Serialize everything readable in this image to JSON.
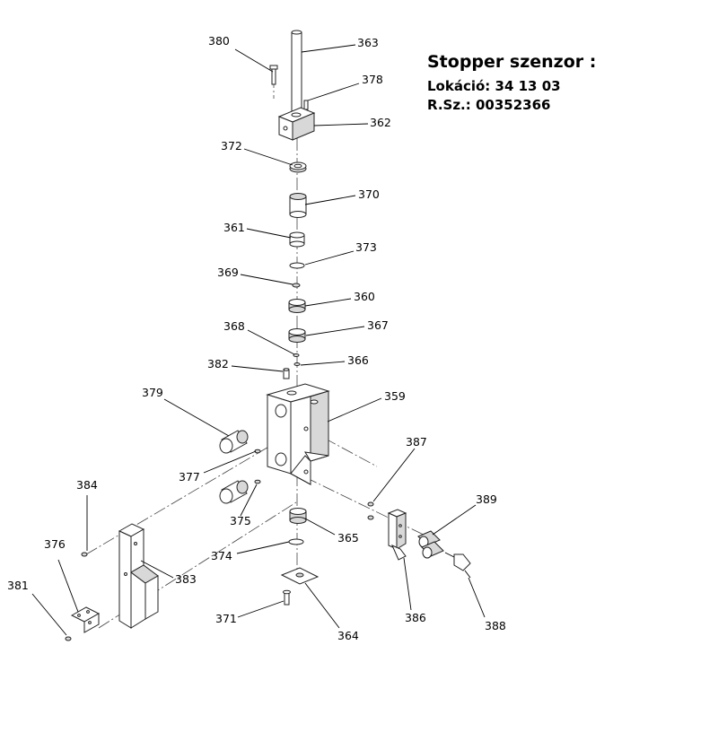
{
  "header": {
    "title": "Stopper szenzor :",
    "location": "Lokáció: 34 13 03",
    "part_number": "R.Sz.: 00352366"
  },
  "callouts": {
    "c380": "380",
    "c363": "363",
    "c378": "378",
    "c362": "362",
    "c372": "372",
    "c370": "370",
    "c361": "361",
    "c373": "373",
    "c369": "369",
    "c360": "360",
    "c368": "368",
    "c367": "367",
    "c382": "382",
    "c366": "366",
    "c379": "379",
    "c359": "359",
    "c387": "387",
    "c377": "377",
    "c384": "384",
    "c389": "389",
    "c376": "376",
    "c375": "375",
    "c365": "365",
    "c381": "381",
    "c374": "374",
    "c383": "383",
    "c386": "386",
    "c388": "388",
    "c371": "371",
    "c364": "364"
  }
}
